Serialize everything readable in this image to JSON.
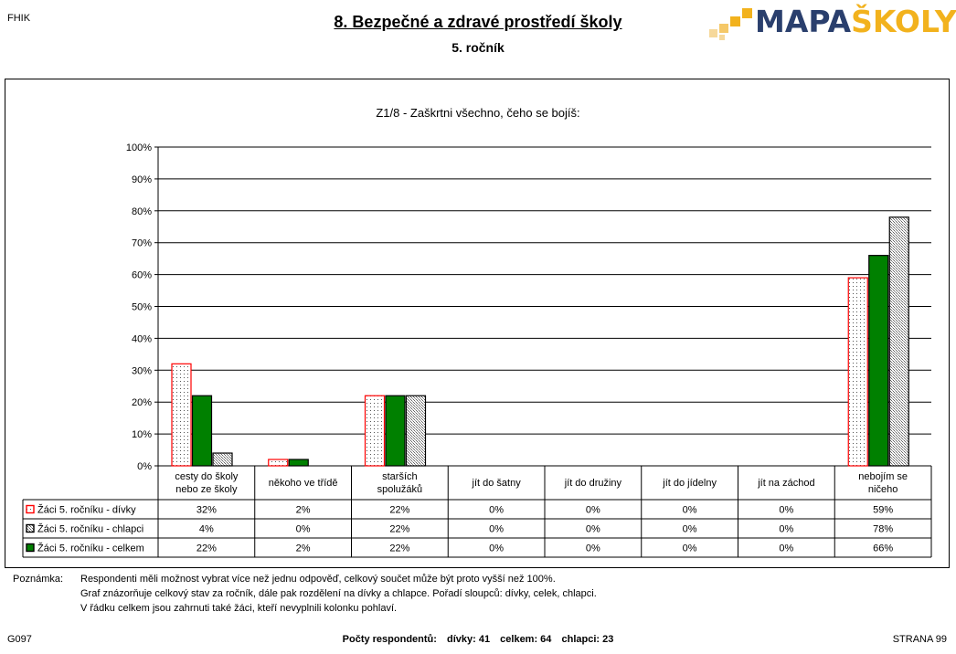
{
  "header": {
    "code": "FHIK",
    "title": "8. Bezpečné a zdravé prostředí školy",
    "subtitle": "5. ročník",
    "logo_part1": "MAPA",
    "logo_part2": "ŠKOLY"
  },
  "chart_data": {
    "type": "bar",
    "title": "Z1/8 - Zaškrtni všechno, čeho se bojíš:",
    "categories": [
      [
        "cesty do školy",
        "nebo ze školy"
      ],
      [
        "někoho ve třídě"
      ],
      [
        "starších",
        "spolužáků"
      ],
      [
        "jít do šatny"
      ],
      [
        "jít do družiny"
      ],
      [
        "jít do jídelny"
      ],
      [
        "jít na záchod"
      ],
      [
        "nebojím se",
        "ničeho"
      ]
    ],
    "yticks": [
      "0%",
      "10%",
      "20%",
      "30%",
      "40%",
      "50%",
      "60%",
      "70%",
      "80%",
      "90%",
      "100%"
    ],
    "ylim": [
      0,
      100
    ],
    "grid": true,
    "series": [
      {
        "name": "Žáci 5. ročníku - dívky",
        "values": [
          32,
          2,
          22,
          0,
          0,
          0,
          0,
          59
        ],
        "labels": [
          "32%",
          "2%",
          "22%",
          "0%",
          "0%",
          "0%",
          "0%",
          "59%"
        ],
        "color": "#ff0000",
        "fill": "dotted-white"
      },
      {
        "name": "Žáci 5. ročníku - chlapci",
        "values": [
          4,
          0,
          22,
          0,
          0,
          0,
          0,
          78
        ],
        "labels": [
          "4%",
          "0%",
          "22%",
          "0%",
          "0%",
          "0%",
          "0%",
          "78%"
        ],
        "color": "#000000",
        "fill": "dotted-grey"
      },
      {
        "name": "Žáci 5. ročníku - celkem",
        "values": [
          22,
          2,
          22,
          0,
          0,
          0,
          0,
          66
        ],
        "labels": [
          "22%",
          "2%",
          "22%",
          "0%",
          "0%",
          "0%",
          "0%",
          "66%"
        ],
        "color": "#008000",
        "fill": "solid-green"
      }
    ]
  },
  "note": {
    "label": "Poznámka:",
    "lines": [
      "Respondenti měli možnost vybrat více než jednu odpověď, celkový součet může být proto vyšší než 100%.",
      "Graf znázorňuje celkový stav za ročník, dále pak rozdělení na dívky a chlapce. Pořadí sloupců: dívky, celek, chlapci.",
      "V řádku celkem jsou zahrnuti také žáci, kteří nevyplnili kolonku pohlaví."
    ]
  },
  "footer": {
    "code": "G097",
    "respondents_label": "Počty respondentů:",
    "girls": "dívky: 41",
    "total": "celkem: 64",
    "boys": "chlapci: 23",
    "page": "STRANA 99"
  }
}
